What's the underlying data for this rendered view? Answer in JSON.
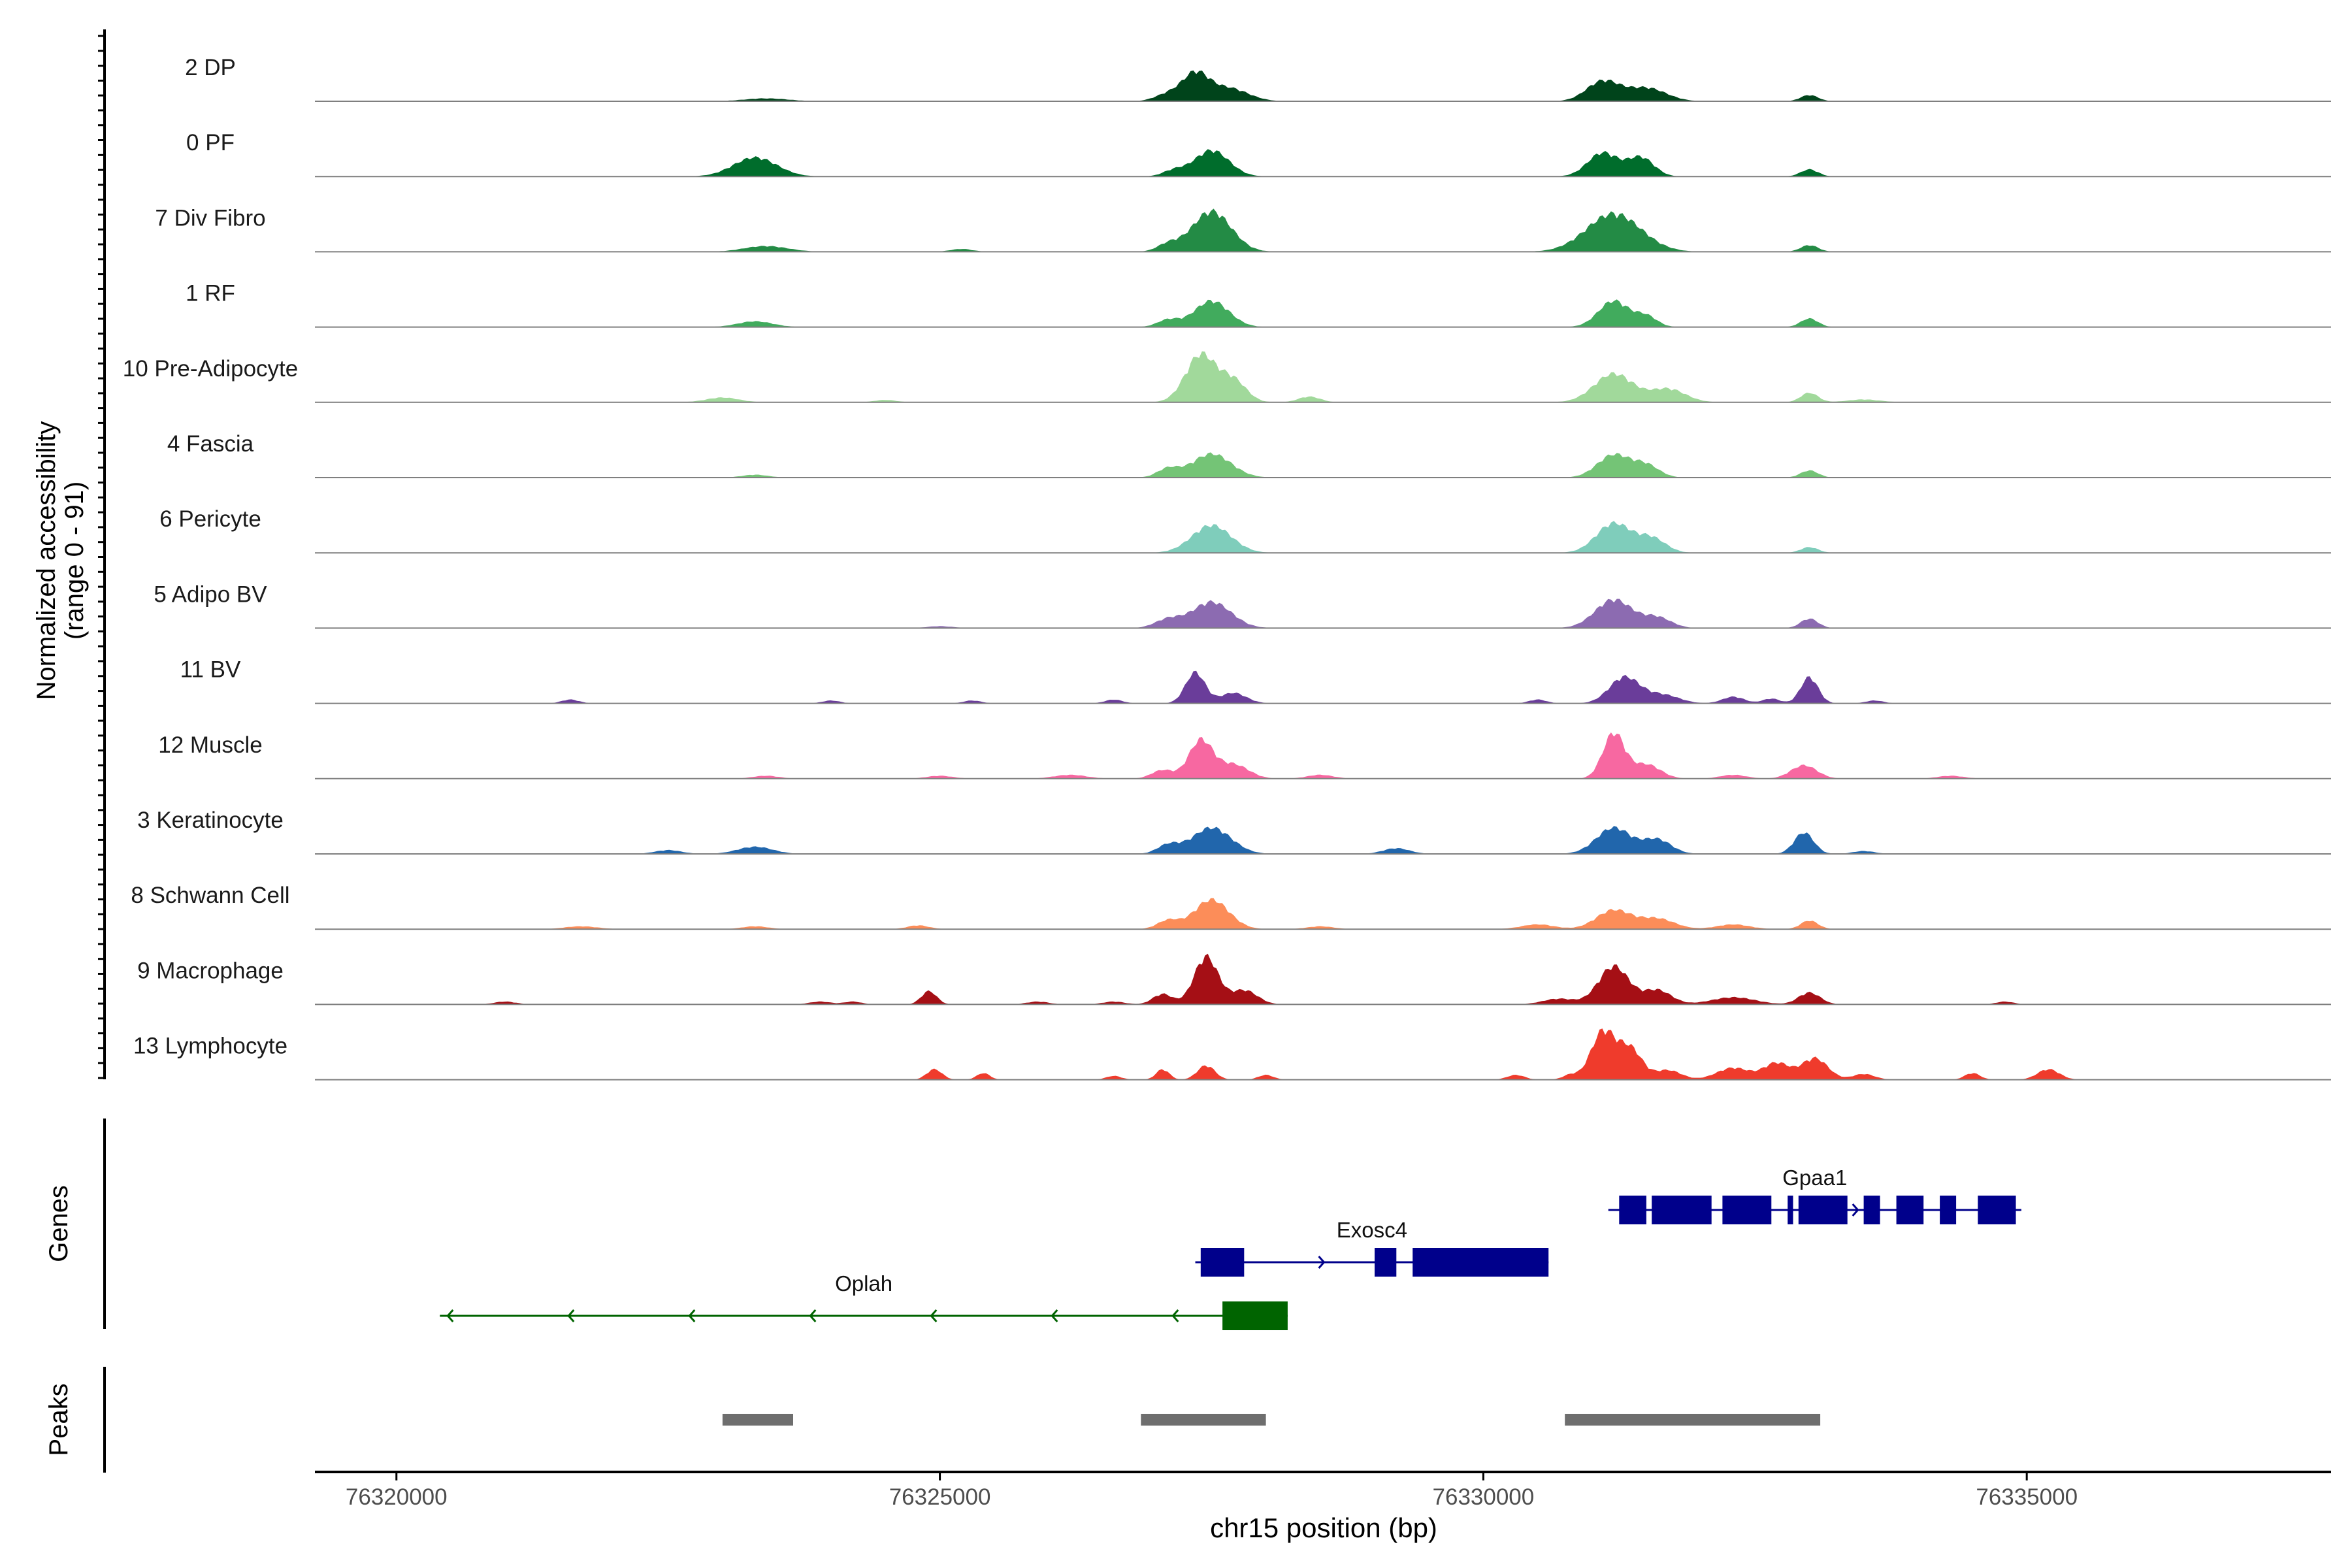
{
  "chart_data": {
    "type": "area",
    "y_axis_label": "Normalized accessibility",
    "y_axis_range_label": "(range 0 - 91)",
    "y_range": [
      0,
      91
    ],
    "x_axis_label": "chr15 position (bp)",
    "x_range": [
      76319250,
      76337800
    ],
    "x_ticks": [
      76320000,
      76325000,
      76330000,
      76335000
    ],
    "x_tick_labels": [
      "76320000",
      "76325000",
      "76330000",
      "76335000"
    ],
    "tracks": [
      {
        "name": "2 DP",
        "color": "#00441b",
        "peaks": [
          [
            76323400,
            0.06,
            200
          ],
          [
            76327100,
            0.15,
            120
          ],
          [
            76327350,
            0.55,
            120
          ],
          [
            76327650,
            0.28,
            180
          ],
          [
            76331100,
            0.42,
            150
          ],
          [
            76331500,
            0.28,
            180
          ],
          [
            76333000,
            0.13,
            80
          ]
        ]
      },
      {
        "name": "0 PF",
        "color": "#006d2c",
        "peaks": [
          [
            76323300,
            0.4,
            200
          ],
          [
            76327150,
            0.12,
            100
          ],
          [
            76327500,
            0.55,
            160
          ],
          [
            76331100,
            0.5,
            140
          ],
          [
            76331450,
            0.4,
            120
          ],
          [
            76333000,
            0.15,
            80
          ]
        ]
      },
      {
        "name": "7 Div Fibro",
        "color": "#238b45",
        "peaks": [
          [
            76323400,
            0.12,
            200
          ],
          [
            76325200,
            0.06,
            100
          ],
          [
            76327100,
            0.15,
            100
          ],
          [
            76327500,
            0.85,
            180
          ],
          [
            76331200,
            0.8,
            250
          ],
          [
            76333000,
            0.14,
            80
          ]
        ]
      },
      {
        "name": "1 RF",
        "color": "#41ab5d",
        "peaks": [
          [
            76323300,
            0.12,
            160
          ],
          [
            76327100,
            0.15,
            100
          ],
          [
            76327500,
            0.55,
            160
          ],
          [
            76331200,
            0.55,
            140
          ],
          [
            76331500,
            0.22,
            100
          ],
          [
            76333000,
            0.18,
            80
          ]
        ]
      },
      {
        "name": "10 Pre-Adipocyte",
        "color": "#a1d99b",
        "peaks": [
          [
            76323000,
            0.1,
            150
          ],
          [
            76324500,
            0.05,
            100
          ],
          [
            76327400,
            1.0,
            140
          ],
          [
            76327700,
            0.45,
            120
          ],
          [
            76328400,
            0.12,
            100
          ],
          [
            76331200,
            0.6,
            180
          ],
          [
            76331700,
            0.28,
            160
          ],
          [
            76333000,
            0.2,
            80
          ],
          [
            76333500,
            0.06,
            150
          ]
        ]
      },
      {
        "name": "4 Fascia",
        "color": "#74c476",
        "peaks": [
          [
            76323300,
            0.06,
            120
          ],
          [
            76327100,
            0.18,
            100
          ],
          [
            76327500,
            0.5,
            180
          ],
          [
            76331200,
            0.48,
            150
          ],
          [
            76331500,
            0.25,
            120
          ],
          [
            76333000,
            0.15,
            80
          ]
        ]
      },
      {
        "name": "6 Pericyte",
        "color": "#7fcdbb",
        "peaks": [
          [
            76327500,
            0.58,
            180
          ],
          [
            76331200,
            0.62,
            160
          ],
          [
            76331550,
            0.3,
            130
          ],
          [
            76333000,
            0.12,
            80
          ]
        ]
      },
      {
        "name": "5 Adipo BV",
        "color": "#8c6bb1",
        "peaks": [
          [
            76325000,
            0.04,
            120
          ],
          [
            76327100,
            0.18,
            120
          ],
          [
            76327500,
            0.55,
            180
          ],
          [
            76331200,
            0.6,
            170
          ],
          [
            76331600,
            0.22,
            130
          ],
          [
            76333000,
            0.2,
            80
          ]
        ]
      },
      {
        "name": "11 BV",
        "color": "#6a3d9a",
        "peaks": [
          [
            76321600,
            0.08,
            80
          ],
          [
            76324000,
            0.06,
            80
          ],
          [
            76325300,
            0.06,
            80
          ],
          [
            76326600,
            0.08,
            80
          ],
          [
            76327350,
            0.65,
            90
          ],
          [
            76327700,
            0.22,
            120
          ],
          [
            76330500,
            0.08,
            80
          ],
          [
            76331300,
            0.55,
            140
          ],
          [
            76331650,
            0.18,
            150
          ],
          [
            76332300,
            0.14,
            100
          ],
          [
            76332650,
            0.1,
            80
          ],
          [
            76333000,
            0.55,
            80
          ],
          [
            76333600,
            0.06,
            80
          ]
        ]
      },
      {
        "name": "12 Muscle",
        "color": "#f768a1",
        "peaks": [
          [
            76323400,
            0.06,
            120
          ],
          [
            76325000,
            0.06,
            120
          ],
          [
            76326200,
            0.08,
            150
          ],
          [
            76327050,
            0.18,
            100
          ],
          [
            76327400,
            0.8,
            110
          ],
          [
            76327700,
            0.3,
            140
          ],
          [
            76328500,
            0.08,
            120
          ],
          [
            76331200,
            0.95,
            100
          ],
          [
            76331500,
            0.3,
            130
          ],
          [
            76332300,
            0.08,
            120
          ],
          [
            76332950,
            0.28,
            120
          ],
          [
            76334300,
            0.06,
            120
          ]
        ]
      },
      {
        "name": "3 Keratinocyte",
        "color": "#2166ac",
        "peaks": [
          [
            76322500,
            0.08,
            120
          ],
          [
            76323300,
            0.15,
            160
          ],
          [
            76327100,
            0.18,
            100
          ],
          [
            76327500,
            0.55,
            180
          ],
          [
            76329200,
            0.12,
            120
          ],
          [
            76331200,
            0.55,
            160
          ],
          [
            76331600,
            0.3,
            130
          ],
          [
            76332950,
            0.45,
            90
          ],
          [
            76333500,
            0.06,
            100
          ]
        ]
      },
      {
        "name": "8 Schwann Cell",
        "color": "#fc8d59",
        "peaks": [
          [
            76321700,
            0.06,
            150
          ],
          [
            76323300,
            0.06,
            120
          ],
          [
            76324800,
            0.08,
            100
          ],
          [
            76327100,
            0.18,
            100
          ],
          [
            76327500,
            0.62,
            160
          ],
          [
            76328500,
            0.06,
            120
          ],
          [
            76330500,
            0.1,
            150
          ],
          [
            76331200,
            0.4,
            160
          ],
          [
            76331600,
            0.22,
            160
          ],
          [
            76332300,
            0.1,
            150
          ],
          [
            76333000,
            0.18,
            80
          ]
        ]
      },
      {
        "name": "9 Macrophage",
        "color": "#a50f15",
        "peaks": [
          [
            76321000,
            0.06,
            100
          ],
          [
            76323900,
            0.06,
            100
          ],
          [
            76324200,
            0.06,
            80
          ],
          [
            76324900,
            0.28,
            70
          ],
          [
            76325900,
            0.06,
            100
          ],
          [
            76326600,
            0.06,
            100
          ],
          [
            76327050,
            0.22,
            90
          ],
          [
            76327450,
            1.0,
            110
          ],
          [
            76327800,
            0.3,
            120
          ],
          [
            76330700,
            0.12,
            150
          ],
          [
            76331200,
            0.8,
            140
          ],
          [
            76331600,
            0.3,
            130
          ],
          [
            76332300,
            0.15,
            200
          ],
          [
            76333000,
            0.25,
            100
          ],
          [
            76334800,
            0.06,
            80
          ]
        ]
      },
      {
        "name": "13 Lymphocyte",
        "color": "#ef3b2c",
        "peaks": [
          [
            76324950,
            0.22,
            70
          ],
          [
            76325400,
            0.14,
            60
          ],
          [
            76326600,
            0.08,
            70
          ],
          [
            76327050,
            0.22,
            60
          ],
          [
            76327450,
            0.3,
            80
          ],
          [
            76328000,
            0.1,
            70
          ],
          [
            76330300,
            0.1,
            80
          ],
          [
            76330800,
            0.1,
            70
          ],
          [
            76331100,
            1.0,
            110
          ],
          [
            76331350,
            0.65,
            110
          ],
          [
            76331700,
            0.2,
            120
          ],
          [
            76332300,
            0.25,
            150
          ],
          [
            76332700,
            0.35,
            120
          ],
          [
            76333050,
            0.45,
            120
          ],
          [
            76333500,
            0.12,
            100
          ],
          [
            76334500,
            0.14,
            70
          ],
          [
            76335200,
            0.22,
            100
          ]
        ]
      }
    ],
    "genes_label": "Genes",
    "genes": [
      {
        "name": "Gpaa1",
        "color": "#00008b",
        "strand": "+",
        "row": 0,
        "start": 76331150,
        "end": 76334950,
        "exons": [
          [
            76331250,
            76331500
          ],
          [
            76331550,
            76332100
          ],
          [
            76332200,
            76332650
          ],
          [
            76332800,
            76332850
          ],
          [
            76332900,
            76333350
          ],
          [
            76333500,
            76333650
          ],
          [
            76333800,
            76334050
          ],
          [
            76334200,
            76334350
          ],
          [
            76334550,
            76334900
          ]
        ]
      },
      {
        "name": "Exosc4",
        "color": "#00008b",
        "strand": "+",
        "row": 1,
        "start": 76327350,
        "end": 76330600,
        "exons": [
          [
            76327400,
            76327800
          ],
          [
            76329000,
            76329200
          ],
          [
            76329350,
            76330600
          ]
        ]
      },
      {
        "name": "Oplah",
        "color": "#006400",
        "strand": "-",
        "row": 2,
        "start": 76320400,
        "end": 76328200,
        "exons": [
          [
            76327600,
            76328200
          ]
        ]
      }
    ],
    "peaks_label": "Peaks",
    "peak_regions": [
      [
        76323000,
        76323650
      ],
      [
        76326850,
        76328000
      ],
      [
        76330750,
        76333100
      ]
    ]
  }
}
